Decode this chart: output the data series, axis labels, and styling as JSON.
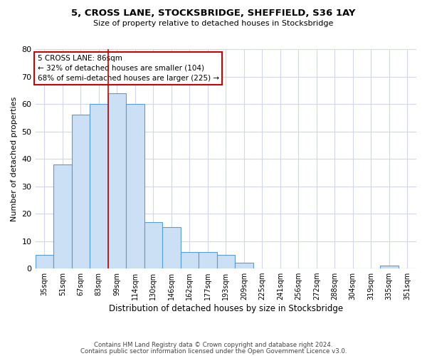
{
  "title": "5, CROSS LANE, STOCKSBRIDGE, SHEFFIELD, S36 1AY",
  "subtitle": "Size of property relative to detached houses in Stocksbridge",
  "xlabel": "Distribution of detached houses by size in Stocksbridge",
  "ylabel": "Number of detached properties",
  "bin_labels": [
    "35sqm",
    "51sqm",
    "67sqm",
    "83sqm",
    "99sqm",
    "114sqm",
    "130sqm",
    "146sqm",
    "162sqm",
    "177sqm",
    "193sqm",
    "209sqm",
    "225sqm",
    "241sqm",
    "256sqm",
    "272sqm",
    "288sqm",
    "304sqm",
    "319sqm",
    "335sqm",
    "351sqm"
  ],
  "bar_values": [
    5,
    38,
    56,
    60,
    64,
    60,
    17,
    15,
    6,
    6,
    5,
    2,
    0,
    0,
    0,
    0,
    0,
    0,
    0,
    1,
    0
  ],
  "bar_color": "#cce0f5",
  "bar_edge_color": "#5b9bd5",
  "ylim": [
    0,
    80
  ],
  "yticks": [
    0,
    10,
    20,
    30,
    40,
    50,
    60,
    70,
    80
  ],
  "vline_x_index": 4,
  "vline_color": "#cc0000",
  "annotation_title": "5 CROSS LANE: 86sqm",
  "annotation_line1": "← 32% of detached houses are smaller (104)",
  "annotation_line2": "68% of semi-detached houses are larger (225) →",
  "annotation_box_color": "#cc0000",
  "footer_line1": "Contains HM Land Registry data © Crown copyright and database right 2024.",
  "footer_line2": "Contains public sector information licensed under the Open Government Licence v3.0.",
  "background_color": "#ffffff",
  "grid_color": "#d0d8e8"
}
